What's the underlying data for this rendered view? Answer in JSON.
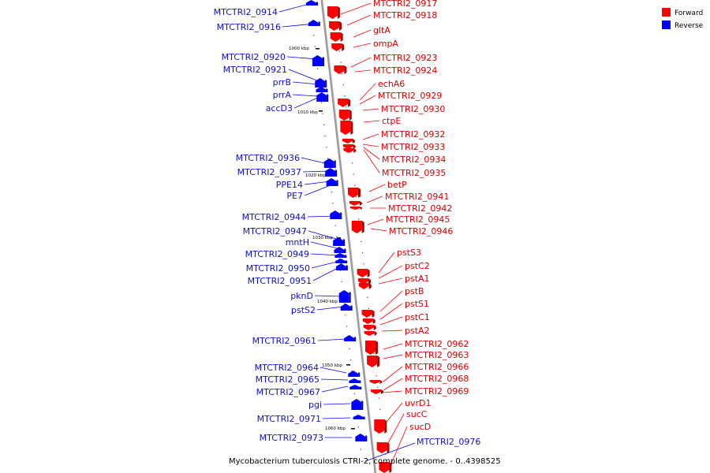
{
  "caption": "Mycobacterium tuberculosis CTRI-2, complete genome. - 0..4398525",
  "legend": [
    {
      "label": "Forward",
      "color": "#ff0000"
    },
    {
      "label": "Reverse",
      "color": "#0000ff"
    }
  ],
  "colors": {
    "forward": "#ff0000",
    "reverse": "#0000ff",
    "backbone": "#a0a0a0"
  },
  "ticks": [
    "1000 kbp",
    "1010 kbp",
    "1020 kbp",
    "1030 kbp",
    "1040 kbp",
    "1050 kbp",
    "1060 kbp"
  ],
  "forward_genes": [
    "MTCTRI2_0917",
    "MTCTRI2_0918",
    "gltA",
    "ompA",
    "MTCTRI2_0923",
    "MTCTRI2_0924",
    "echA6",
    "MTCTRI2_0929",
    "MTCTRI2_0930",
    "ctpE",
    "MTCTRI2_0932",
    "MTCTRI2_0933",
    "MTCTRI2_0934",
    "MTCTRI2_0935",
    "betP",
    "MTCTRI2_0941",
    "MTCTRI2_0942",
    "MTCTRI2_0945",
    "MTCTRI2_0946",
    "pstS3",
    "pstC2",
    "pstA1",
    "pstB",
    "pstS1",
    "pstC1",
    "pstA2",
    "MTCTRI2_0962",
    "MTCTRI2_0963",
    "MTCTRI2_0966",
    "MTCTRI2_0968",
    "MTCTRI2_0969",
    "uvrD1",
    "sucC",
    "sucD"
  ],
  "reverse_genes": [
    "MTCTRI2_0914",
    "MTCTRI2_0916",
    "MTCTRI2_0920",
    "MTCTRI2_0921",
    "prrB",
    "prrA",
    "accD3",
    "MTCTRI2_0936",
    "MTCTRI2_0937",
    "PPE14",
    "PE7",
    "MTCTRI2_0944",
    "MTCTRI2_0947",
    "mntH",
    "MTCTRI2_0949",
    "MTCTRI2_0950",
    "MTCTRI2_0951",
    "pknD",
    "pstS2",
    "MTCTRI2_0961",
    "MTCTRI2_0964",
    "MTCTRI2_0965",
    "MTCTRI2_0967",
    "pgi",
    "MTCTRI2_0971",
    "MTCTRI2_0973",
    "MTCTRI2_0976"
  ]
}
